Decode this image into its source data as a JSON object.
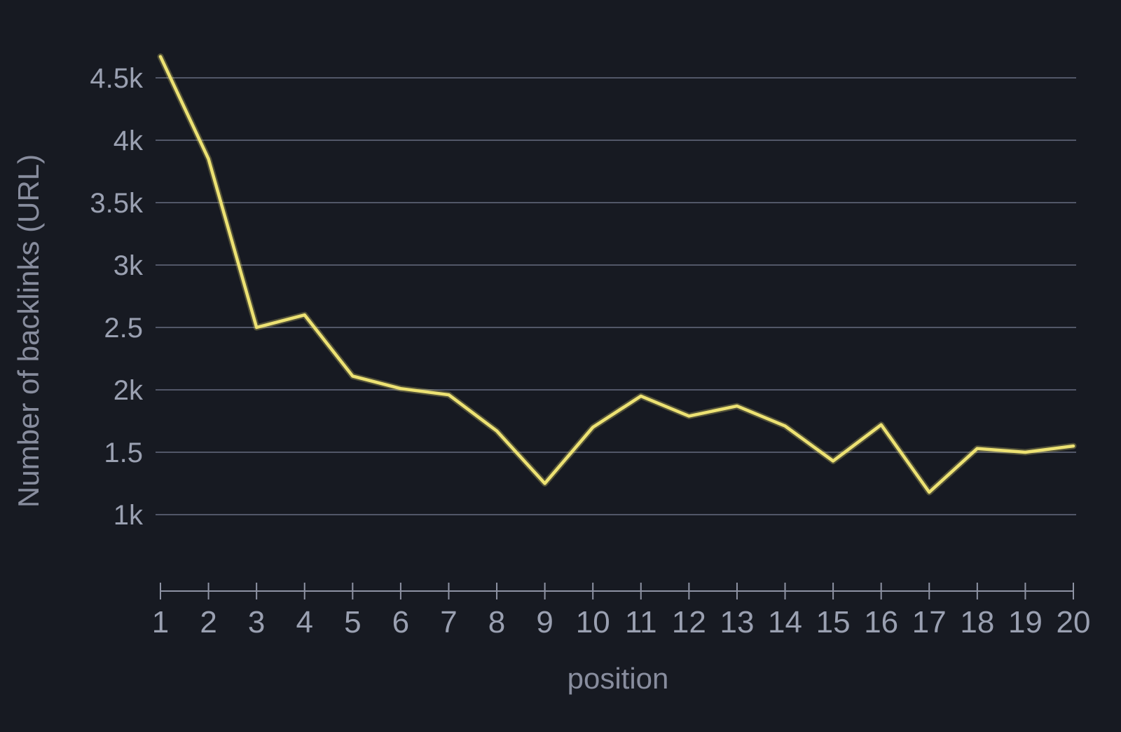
{
  "chart_data": {
    "type": "line",
    "title": "",
    "xlabel": "position",
    "ylabel": "Number of backlinks (URL)",
    "x": [
      1,
      2,
      3,
      4,
      5,
      6,
      7,
      8,
      9,
      10,
      11,
      12,
      13,
      14,
      15,
      16,
      17,
      18,
      19,
      20
    ],
    "series": [
      {
        "name": "backlinks",
        "values": [
          4670,
          3850,
          2500,
          2600,
          2110,
          2010,
          1960,
          1670,
          1250,
          1700,
          1950,
          1790,
          1870,
          1710,
          1430,
          1720,
          1180,
          1530,
          1500,
          1550
        ]
      }
    ],
    "y_ticks": [
      {
        "value": 4500,
        "label": "4.5k"
      },
      {
        "value": 4000,
        "label": "4k"
      },
      {
        "value": 3500,
        "label": "3.5k"
      },
      {
        "value": 3000,
        "label": "3k"
      },
      {
        "value": 2500,
        "label": "2.5"
      },
      {
        "value": 2000,
        "label": "2k"
      },
      {
        "value": 1500,
        "label": "1.5"
      },
      {
        "value": 1000,
        "label": "1k"
      }
    ],
    "ylim": [
      1000,
      4700
    ],
    "xlim": [
      1,
      20
    ],
    "grid": "horizontal",
    "legend": "none",
    "colors": {
      "line": "#ede273",
      "background": "#171a22",
      "gridline": "#525768",
      "axis": "#8e93a4",
      "tick_label": "#9aa0b1",
      "axis_title": "#888d9e"
    }
  }
}
